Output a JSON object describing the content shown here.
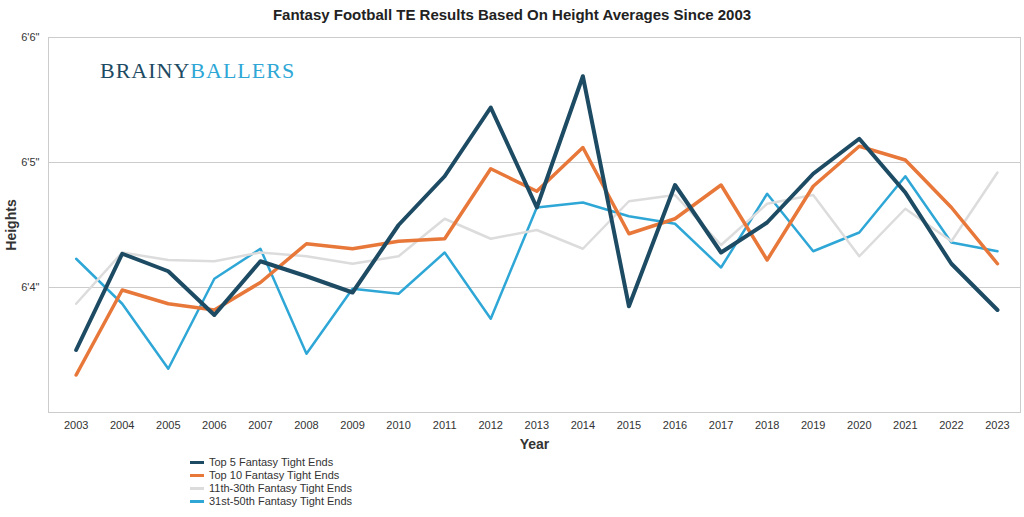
{
  "chart_data": {
    "type": "line",
    "title": "Fantasy Football TE Results Based On Height Averages Since 2003",
    "x_label": "Year",
    "y_label": "Heights",
    "annotations": [
      "BRAINY",
      "BALLERS"
    ],
    "x": [
      2003,
      2004,
      2005,
      2006,
      2007,
      2008,
      2009,
      2010,
      2011,
      2012,
      2013,
      2014,
      2015,
      2016,
      2017,
      2018,
      2019,
      2020,
      2021,
      2022,
      2023
    ],
    "xlim": [
      2002.4,
      2023.5
    ],
    "xticks": [
      2003,
      2004,
      2005,
      2006,
      2007,
      2008,
      2009,
      2010,
      2011,
      2012,
      2013,
      2014,
      2015,
      2016,
      2017,
      2018,
      2019,
      2020,
      2021,
      2022,
      2023
    ],
    "ylim": [
      75,
      78
    ],
    "yticks": [
      {
        "value": 76,
        "label": "6'4\""
      },
      {
        "value": 77,
        "label": "6'5\""
      },
      {
        "value": 78,
        "label": "6'6\""
      }
    ],
    "grid": true,
    "legend": "bottom",
    "series": [
      {
        "name": "Top 5 Fantasy Tight Ends",
        "color": "#1d4b63",
        "values": [
          75.5,
          76.27,
          76.13,
          75.78,
          76.21,
          76.09,
          75.96,
          76.5,
          76.89,
          77.44,
          76.64,
          77.69,
          75.85,
          76.82,
          76.28,
          76.52,
          76.91,
          77.19,
          76.76,
          76.19,
          75.82
        ]
      },
      {
        "name": "Top 10 Fantasy Tight Ends",
        "color": "#e8773a",
        "values": [
          75.3,
          75.98,
          75.87,
          75.82,
          76.04,
          76.35,
          76.31,
          76.37,
          76.39,
          76.95,
          76.77,
          77.12,
          76.43,
          76.55,
          76.82,
          76.22,
          76.81,
          77.13,
          77.02,
          76.64,
          76.19
        ]
      },
      {
        "name": "11th-30th Fantasy Tight Ends",
        "color": "#dcdcdc",
        "values": [
          75.87,
          76.28,
          76.22,
          76.21,
          76.28,
          76.25,
          76.19,
          76.25,
          76.55,
          76.39,
          76.46,
          76.31,
          76.69,
          76.74,
          76.34,
          76.67,
          76.74,
          76.25,
          76.63,
          76.37,
          76.92
        ]
      },
      {
        "name": "31st-50th Fantasy Tight Ends",
        "color": "#2ea7d6",
        "values": [
          76.23,
          75.87,
          75.35,
          76.07,
          76.31,
          75.47,
          75.99,
          75.95,
          76.28,
          75.75,
          76.64,
          76.68,
          76.57,
          76.51,
          76.16,
          76.75,
          76.29,
          76.44,
          76.89,
          76.36,
          76.29
        ]
      }
    ]
  }
}
